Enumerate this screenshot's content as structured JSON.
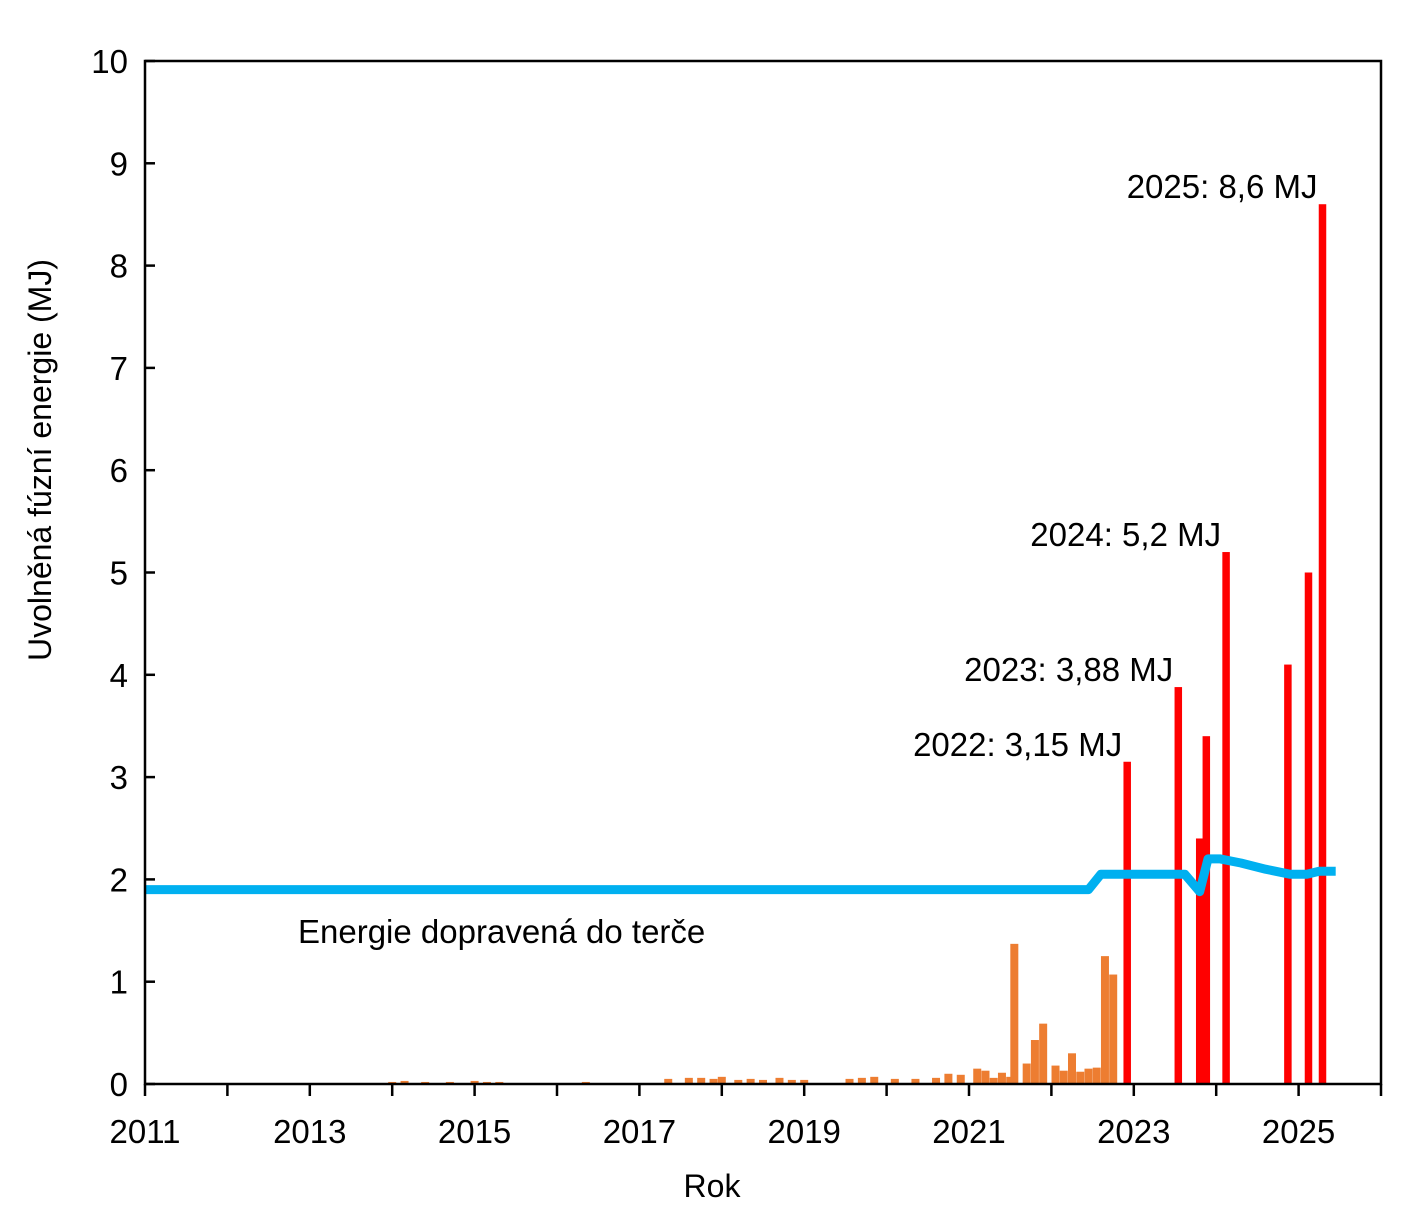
{
  "chart_data": {
    "type": "bar",
    "title": "",
    "xlabel": "Rok",
    "ylabel": "Uvolněná fúzní energie (MJ)",
    "xlim": [
      2011,
      2026
    ],
    "ylim": [
      0,
      10
    ],
    "grid": false,
    "x_ticks": [
      2011,
      2012,
      2013,
      2014,
      2015,
      2016,
      2017,
      2018,
      2019,
      2020,
      2021,
      2022,
      2023,
      2024,
      2025,
      2026
    ],
    "x_tick_labels": [
      "2011",
      "2013",
      "2015",
      "2017",
      "2019",
      "2021",
      "2023",
      "2025"
    ],
    "y_ticks": [
      "0",
      "1",
      "2",
      "3",
      "4",
      "5",
      "6",
      "7",
      "8",
      "9",
      "10"
    ],
    "series": [
      {
        "color": "#ed7d31",
        "points": [
          [
            2014.0,
            0.02
          ],
          [
            2014.15,
            0.03
          ],
          [
            2014.4,
            0.02
          ],
          [
            2014.7,
            0.02
          ],
          [
            2015.0,
            0.03
          ],
          [
            2015.15,
            0.02
          ],
          [
            2015.3,
            0.02
          ],
          [
            2016.35,
            0.02
          ],
          [
            2017.35,
            0.05
          ],
          [
            2017.6,
            0.06
          ],
          [
            2017.75,
            0.06
          ],
          [
            2017.9,
            0.05
          ],
          [
            2018.0,
            0.07
          ],
          [
            2018.2,
            0.04
          ],
          [
            2018.35,
            0.05
          ],
          [
            2018.5,
            0.04
          ],
          [
            2018.7,
            0.06
          ],
          [
            2018.85,
            0.04
          ],
          [
            2019.0,
            0.04
          ],
          [
            2019.55,
            0.05
          ],
          [
            2019.7,
            0.06
          ],
          [
            2019.85,
            0.07
          ],
          [
            2020.1,
            0.05
          ],
          [
            2020.35,
            0.05
          ],
          [
            2020.6,
            0.06
          ],
          [
            2020.75,
            0.1
          ],
          [
            2020.9,
            0.09
          ],
          [
            2021.1,
            0.15
          ],
          [
            2021.2,
            0.13
          ],
          [
            2021.3,
            0.06
          ],
          [
            2021.4,
            0.11
          ],
          [
            2021.5,
            0.07
          ],
          [
            2021.55,
            1.37
          ],
          [
            2021.7,
            0.2
          ],
          [
            2021.8,
            0.43
          ],
          [
            2021.9,
            0.59
          ],
          [
            2022.05,
            0.18
          ],
          [
            2022.15,
            0.13
          ],
          [
            2022.25,
            0.3
          ],
          [
            2022.35,
            0.12
          ],
          [
            2022.45,
            0.15
          ],
          [
            2022.55,
            0.16
          ],
          [
            2022.65,
            1.25
          ],
          [
            2022.75,
            1.07
          ]
        ]
      },
      {
        "color": "#ff0000",
        "points": [
          [
            2022.92,
            3.15
          ],
          [
            2023.54,
            3.88
          ],
          [
            2023.8,
            2.4
          ],
          [
            2023.88,
            3.4
          ],
          [
            2024.12,
            5.2
          ],
          [
            2024.87,
            4.1
          ],
          [
            2025.12,
            5.0
          ],
          [
            2025.29,
            8.6
          ]
        ]
      },
      {
        "name": "Energie dopravená do terče",
        "color": "#00b0f0",
        "type": "line",
        "points": [
          [
            2011.0,
            1.9
          ],
          [
            2022.45,
            1.9
          ],
          [
            2022.6,
            2.05
          ],
          [
            2023.5,
            2.05
          ],
          [
            2023.62,
            2.05
          ],
          [
            2023.8,
            1.88
          ],
          [
            2023.9,
            2.2
          ],
          [
            2024.05,
            2.2
          ],
          [
            2024.3,
            2.16
          ],
          [
            2024.6,
            2.1
          ],
          [
            2024.9,
            2.05
          ],
          [
            2025.1,
            2.05
          ],
          [
            2025.25,
            2.08
          ],
          [
            2025.45,
            2.08
          ]
        ]
      }
    ],
    "annotations": [
      {
        "text": "2022: 3,15 MJ",
        "x": 2022.92,
        "y": 3.15
      },
      {
        "text": "2023: 3,88 MJ",
        "x": 2023.54,
        "y": 3.88
      },
      {
        "text": "2024: 5,2 MJ",
        "x": 2024.12,
        "y": 5.2
      },
      {
        "text": "2025: 8,6 MJ",
        "x": 2025.29,
        "y": 8.6
      }
    ]
  }
}
